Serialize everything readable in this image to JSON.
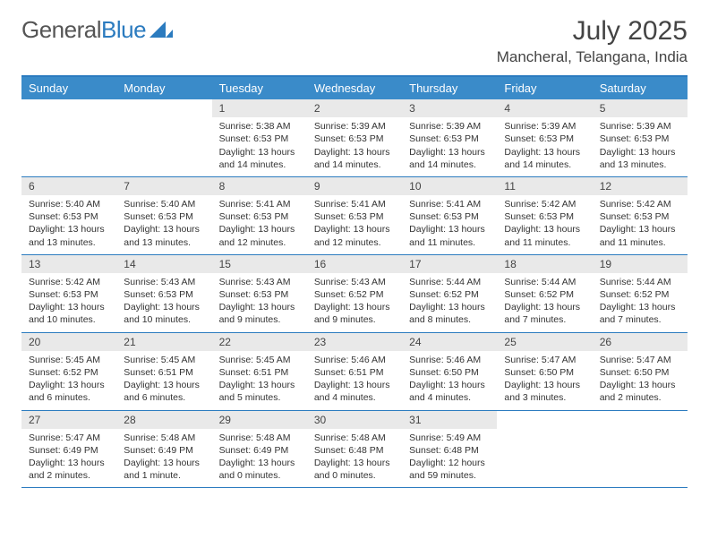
{
  "logo": {
    "gray": "General",
    "blue": "Blue"
  },
  "title": "July 2025",
  "location": "Mancheral, Telangana, India",
  "colors": {
    "header_bg": "#3a8bc9",
    "border": "#2b7bbf",
    "daynum_bg": "#e9e9e9",
    "text": "#333333",
    "title_text": "#444444"
  },
  "day_names": [
    "Sunday",
    "Monday",
    "Tuesday",
    "Wednesday",
    "Thursday",
    "Friday",
    "Saturday"
  ],
  "weeks": [
    [
      {
        "n": "",
        "sunrise": "",
        "sunset": "",
        "daylight": ""
      },
      {
        "n": "",
        "sunrise": "",
        "sunset": "",
        "daylight": ""
      },
      {
        "n": "1",
        "sunrise": "Sunrise: 5:38 AM",
        "sunset": "Sunset: 6:53 PM",
        "daylight": "Daylight: 13 hours and 14 minutes."
      },
      {
        "n": "2",
        "sunrise": "Sunrise: 5:39 AM",
        "sunset": "Sunset: 6:53 PM",
        "daylight": "Daylight: 13 hours and 14 minutes."
      },
      {
        "n": "3",
        "sunrise": "Sunrise: 5:39 AM",
        "sunset": "Sunset: 6:53 PM",
        "daylight": "Daylight: 13 hours and 14 minutes."
      },
      {
        "n": "4",
        "sunrise": "Sunrise: 5:39 AM",
        "sunset": "Sunset: 6:53 PM",
        "daylight": "Daylight: 13 hours and 14 minutes."
      },
      {
        "n": "5",
        "sunrise": "Sunrise: 5:39 AM",
        "sunset": "Sunset: 6:53 PM",
        "daylight": "Daylight: 13 hours and 13 minutes."
      }
    ],
    [
      {
        "n": "6",
        "sunrise": "Sunrise: 5:40 AM",
        "sunset": "Sunset: 6:53 PM",
        "daylight": "Daylight: 13 hours and 13 minutes."
      },
      {
        "n": "7",
        "sunrise": "Sunrise: 5:40 AM",
        "sunset": "Sunset: 6:53 PM",
        "daylight": "Daylight: 13 hours and 13 minutes."
      },
      {
        "n": "8",
        "sunrise": "Sunrise: 5:41 AM",
        "sunset": "Sunset: 6:53 PM",
        "daylight": "Daylight: 13 hours and 12 minutes."
      },
      {
        "n": "9",
        "sunrise": "Sunrise: 5:41 AM",
        "sunset": "Sunset: 6:53 PM",
        "daylight": "Daylight: 13 hours and 12 minutes."
      },
      {
        "n": "10",
        "sunrise": "Sunrise: 5:41 AM",
        "sunset": "Sunset: 6:53 PM",
        "daylight": "Daylight: 13 hours and 11 minutes."
      },
      {
        "n": "11",
        "sunrise": "Sunrise: 5:42 AM",
        "sunset": "Sunset: 6:53 PM",
        "daylight": "Daylight: 13 hours and 11 minutes."
      },
      {
        "n": "12",
        "sunrise": "Sunrise: 5:42 AM",
        "sunset": "Sunset: 6:53 PM",
        "daylight": "Daylight: 13 hours and 11 minutes."
      }
    ],
    [
      {
        "n": "13",
        "sunrise": "Sunrise: 5:42 AM",
        "sunset": "Sunset: 6:53 PM",
        "daylight": "Daylight: 13 hours and 10 minutes."
      },
      {
        "n": "14",
        "sunrise": "Sunrise: 5:43 AM",
        "sunset": "Sunset: 6:53 PM",
        "daylight": "Daylight: 13 hours and 10 minutes."
      },
      {
        "n": "15",
        "sunrise": "Sunrise: 5:43 AM",
        "sunset": "Sunset: 6:53 PM",
        "daylight": "Daylight: 13 hours and 9 minutes."
      },
      {
        "n": "16",
        "sunrise": "Sunrise: 5:43 AM",
        "sunset": "Sunset: 6:52 PM",
        "daylight": "Daylight: 13 hours and 9 minutes."
      },
      {
        "n": "17",
        "sunrise": "Sunrise: 5:44 AM",
        "sunset": "Sunset: 6:52 PM",
        "daylight": "Daylight: 13 hours and 8 minutes."
      },
      {
        "n": "18",
        "sunrise": "Sunrise: 5:44 AM",
        "sunset": "Sunset: 6:52 PM",
        "daylight": "Daylight: 13 hours and 7 minutes."
      },
      {
        "n": "19",
        "sunrise": "Sunrise: 5:44 AM",
        "sunset": "Sunset: 6:52 PM",
        "daylight": "Daylight: 13 hours and 7 minutes."
      }
    ],
    [
      {
        "n": "20",
        "sunrise": "Sunrise: 5:45 AM",
        "sunset": "Sunset: 6:52 PM",
        "daylight": "Daylight: 13 hours and 6 minutes."
      },
      {
        "n": "21",
        "sunrise": "Sunrise: 5:45 AM",
        "sunset": "Sunset: 6:51 PM",
        "daylight": "Daylight: 13 hours and 6 minutes."
      },
      {
        "n": "22",
        "sunrise": "Sunrise: 5:45 AM",
        "sunset": "Sunset: 6:51 PM",
        "daylight": "Daylight: 13 hours and 5 minutes."
      },
      {
        "n": "23",
        "sunrise": "Sunrise: 5:46 AM",
        "sunset": "Sunset: 6:51 PM",
        "daylight": "Daylight: 13 hours and 4 minutes."
      },
      {
        "n": "24",
        "sunrise": "Sunrise: 5:46 AM",
        "sunset": "Sunset: 6:50 PM",
        "daylight": "Daylight: 13 hours and 4 minutes."
      },
      {
        "n": "25",
        "sunrise": "Sunrise: 5:47 AM",
        "sunset": "Sunset: 6:50 PM",
        "daylight": "Daylight: 13 hours and 3 minutes."
      },
      {
        "n": "26",
        "sunrise": "Sunrise: 5:47 AM",
        "sunset": "Sunset: 6:50 PM",
        "daylight": "Daylight: 13 hours and 2 minutes."
      }
    ],
    [
      {
        "n": "27",
        "sunrise": "Sunrise: 5:47 AM",
        "sunset": "Sunset: 6:49 PM",
        "daylight": "Daylight: 13 hours and 2 minutes."
      },
      {
        "n": "28",
        "sunrise": "Sunrise: 5:48 AM",
        "sunset": "Sunset: 6:49 PM",
        "daylight": "Daylight: 13 hours and 1 minute."
      },
      {
        "n": "29",
        "sunrise": "Sunrise: 5:48 AM",
        "sunset": "Sunset: 6:49 PM",
        "daylight": "Daylight: 13 hours and 0 minutes."
      },
      {
        "n": "30",
        "sunrise": "Sunrise: 5:48 AM",
        "sunset": "Sunset: 6:48 PM",
        "daylight": "Daylight: 13 hours and 0 minutes."
      },
      {
        "n": "31",
        "sunrise": "Sunrise: 5:49 AM",
        "sunset": "Sunset: 6:48 PM",
        "daylight": "Daylight: 12 hours and 59 minutes."
      },
      {
        "n": "",
        "sunrise": "",
        "sunset": "",
        "daylight": ""
      },
      {
        "n": "",
        "sunrise": "",
        "sunset": "",
        "daylight": ""
      }
    ]
  ]
}
